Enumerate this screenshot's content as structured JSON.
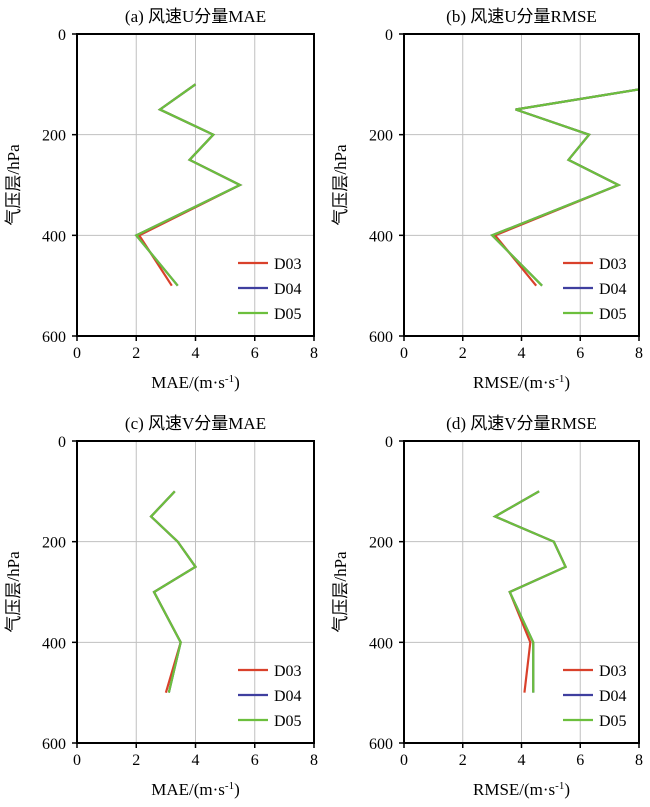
{
  "colors": {
    "D03": "#d9412b",
    "D04": "#3f3f9f",
    "D05": "#6cbf3d",
    "grid": "#c0c0c0",
    "axis": "#000000"
  },
  "chart_data": [
    {
      "type": "line",
      "title": "(a) 风速U分量MAE",
      "xlabel": "MAE/(m·s",
      "xlabel_sup": "-1",
      "xlabel_end": ")",
      "ylabel": "气压层/hPa",
      "xlim": [
        0,
        8
      ],
      "ylim": [
        600,
        0
      ],
      "xticks": [
        0,
        2,
        4,
        6,
        8
      ],
      "yticks": [
        0,
        200,
        400,
        600
      ],
      "grid": true,
      "legend": "bottom-right",
      "y": [
        100,
        150,
        200,
        250,
        300,
        400,
        500
      ],
      "series": [
        {
          "name": "D03",
          "x": [
            4.0,
            2.8,
            4.6,
            3.8,
            5.5,
            2.1,
            3.2
          ]
        },
        {
          "name": "D04",
          "x": [
            4.0,
            2.8,
            4.6,
            3.8,
            5.5,
            2.0,
            3.4
          ]
        },
        {
          "name": "D05",
          "x": [
            4.0,
            2.8,
            4.6,
            3.8,
            5.5,
            2.0,
            3.4
          ]
        }
      ]
    },
    {
      "type": "line",
      "title": "(b) 风速U分量RMSE",
      "xlabel": "RMSE/(m·s",
      "xlabel_sup": "-1",
      "xlabel_end": ")",
      "ylabel": "气压层/hPa",
      "xlim": [
        0,
        8
      ],
      "ylim": [
        600,
        0
      ],
      "xticks": [
        0,
        2,
        4,
        6,
        8
      ],
      "yticks": [
        0,
        200,
        400,
        600
      ],
      "grid": true,
      "legend": "bottom-right",
      "y": [
        110,
        150,
        200,
        250,
        300,
        400,
        500
      ],
      "series": [
        {
          "name": "D03",
          "x": [
            8.0,
            3.8,
            6.3,
            5.6,
            7.3,
            3.1,
            4.5
          ]
        },
        {
          "name": "D04",
          "x": [
            8.0,
            3.8,
            6.3,
            5.6,
            7.3,
            3.0,
            4.7
          ]
        },
        {
          "name": "D05",
          "x": [
            8.0,
            3.8,
            6.3,
            5.6,
            7.3,
            3.0,
            4.7
          ]
        }
      ]
    },
    {
      "type": "line",
      "title": "(c) 风速V分量MAE",
      "xlabel": "MAE/(m·s",
      "xlabel_sup": "-1",
      "xlabel_end": ")",
      "ylabel": "气压层/hPa",
      "xlim": [
        0,
        8
      ],
      "ylim": [
        600,
        0
      ],
      "xticks": [
        0,
        2,
        4,
        6,
        8
      ],
      "yticks": [
        0,
        200,
        400,
        600
      ],
      "grid": true,
      "legend": "bottom-right",
      "y": [
        100,
        150,
        200,
        250,
        300,
        400,
        500
      ],
      "series": [
        {
          "name": "D03",
          "x": [
            3.3,
            2.5,
            3.4,
            4.0,
            2.6,
            3.5,
            3.0
          ]
        },
        {
          "name": "D04",
          "x": [
            3.3,
            2.5,
            3.4,
            4.0,
            2.6,
            3.5,
            3.1
          ]
        },
        {
          "name": "D05",
          "x": [
            3.3,
            2.5,
            3.4,
            4.0,
            2.6,
            3.5,
            3.1
          ]
        }
      ]
    },
    {
      "type": "line",
      "title": "(d) 风速V分量RMSE",
      "xlabel": "RMSE/(m·s",
      "xlabel_sup": "-1",
      "xlabel_end": ")",
      "ylabel": "气压层/hPa",
      "xlim": [
        0,
        8
      ],
      "ylim": [
        600,
        0
      ],
      "xticks": [
        0,
        2,
        4,
        6,
        8
      ],
      "yticks": [
        0,
        200,
        400,
        600
      ],
      "grid": true,
      "legend": "bottom-right",
      "y": [
        100,
        150,
        200,
        250,
        300,
        400,
        500
      ],
      "series": [
        {
          "name": "D03",
          "x": [
            4.6,
            3.1,
            5.1,
            5.5,
            3.6,
            4.3,
            4.1
          ]
        },
        {
          "name": "D04",
          "x": [
            4.6,
            3.1,
            5.1,
            5.5,
            3.6,
            4.4,
            4.4
          ]
        },
        {
          "name": "D05",
          "x": [
            4.6,
            3.1,
            5.1,
            5.5,
            3.6,
            4.4,
            4.4
          ]
        }
      ]
    }
  ]
}
